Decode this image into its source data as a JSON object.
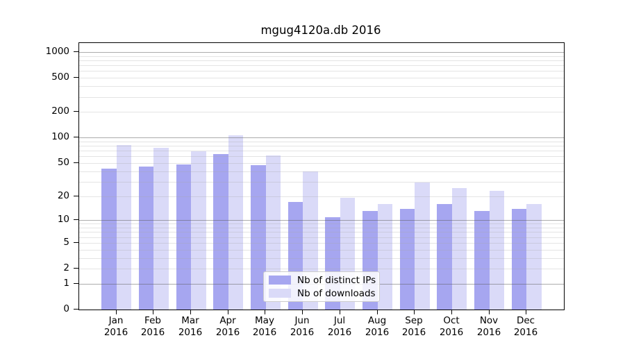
{
  "chart_data": {
    "type": "bar",
    "title": "mgug4120a.db 2016",
    "categories": [
      "Jan",
      "Feb",
      "Mar",
      "Apr",
      "May",
      "Jun",
      "Jul",
      "Aug",
      "Sep",
      "Oct",
      "Nov",
      "Dec"
    ],
    "x_year_label": "2016",
    "series": [
      {
        "name": "Nb of distinct IPs",
        "color": "#a6a6f0",
        "values": [
          43,
          45,
          48,
          64,
          47,
          17,
          11,
          13,
          14,
          16,
          13,
          14
        ]
      },
      {
        "name": "Nb of downloads",
        "color": "#dadaf8",
        "values": [
          82,
          75,
          69,
          106,
          61,
          40,
          19,
          16,
          29,
          25,
          23,
          16
        ]
      }
    ],
    "y_ticks": [
      0,
      1,
      2,
      5,
      10,
      20,
      50,
      100,
      200,
      500,
      1000
    ],
    "yscale": "log1p",
    "ylim": [
      0,
      1000
    ],
    "grid": "both-major-and-minor",
    "legend_position": "lower center"
  }
}
